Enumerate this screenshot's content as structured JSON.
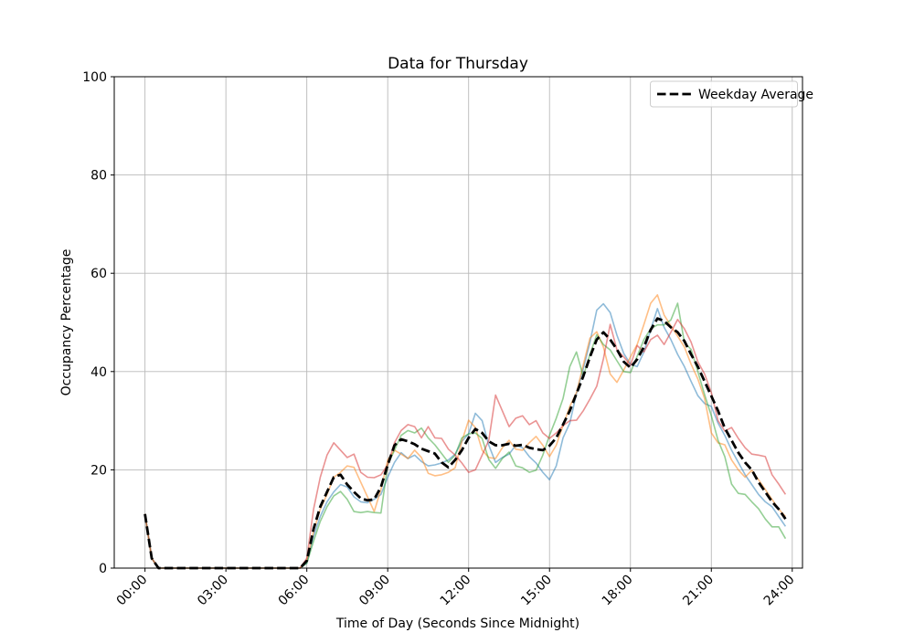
{
  "figure": {
    "background": "#ffffff",
    "grid_color": "#b9b9b9",
    "spine_color": "#000000"
  },
  "chart_data": {
    "type": "line",
    "title": "Data for Thursday",
    "xlabel": "Time of Day (Seconds Since Midnight)",
    "ylabel": "Occupancy Percentage",
    "legend_label": "Weekday Average",
    "legend_position": "upper right",
    "grid": true,
    "ylim": [
      0,
      100
    ],
    "yticks": [
      0,
      20,
      40,
      60,
      80,
      100
    ],
    "xlim_hours": [
      -1.14,
      24.38
    ],
    "xtick_hours": [
      0,
      3,
      6,
      9,
      12,
      15,
      18,
      21,
      24
    ],
    "xtick_labels": [
      "00:00",
      "03:00",
      "06:00",
      "09:00",
      "12:00",
      "15:00",
      "18:00",
      "21:00",
      "24:00"
    ],
    "x_hours": [
      0,
      0.25,
      0.5,
      0.75,
      1,
      1.25,
      1.5,
      1.75,
      2,
      2.25,
      2.5,
      2.75,
      3,
      3.25,
      3.5,
      3.75,
      4,
      4.25,
      4.5,
      4.75,
      5,
      5.25,
      5.5,
      5.75,
      6,
      6.25,
      6.5,
      6.75,
      7,
      7.25,
      7.5,
      7.75,
      8,
      8.25,
      8.5,
      8.75,
      9,
      9.25,
      9.5,
      9.75,
      10,
      10.25,
      10.5,
      10.75,
      11,
      11.25,
      11.5,
      11.75,
      12,
      12.25,
      12.5,
      12.75,
      13,
      13.25,
      13.5,
      13.75,
      14,
      14.25,
      14.5,
      14.75,
      15,
      15.25,
      15.5,
      15.75,
      16,
      16.25,
      16.5,
      16.75,
      17,
      17.25,
      17.5,
      17.75,
      18,
      18.25,
      18.5,
      18.75,
      19,
      19.25,
      19.5,
      19.75,
      20,
      20.25,
      20.5,
      20.75,
      21,
      21.25,
      21.5,
      21.75,
      22,
      22.25,
      22.5,
      22.75,
      23,
      23.25,
      23.5,
      23.75
    ],
    "series": [
      {
        "name": "day-blue",
        "color": "#1f77b4",
        "opacity": 0.5,
        "width": 1.6,
        "dashed": false,
        "values": [
          11,
          2,
          0,
          0,
          0,
          0,
          0,
          0,
          0,
          0,
          0,
          0,
          0,
          0,
          0,
          0,
          0,
          0,
          0,
          0,
          0,
          0,
          0,
          0,
          1,
          6.5,
          10.5,
          13.5,
          15.5,
          17,
          16.5,
          14.5,
          13.5,
          13.3,
          14,
          15,
          18.5,
          21.5,
          23.5,
          22.3,
          23,
          21.7,
          20.8,
          21,
          21.4,
          22,
          23.2,
          25.8,
          27.3,
          31.5,
          30,
          25,
          21.5,
          22.5,
          23.2,
          25,
          24.5,
          22.7,
          21.4,
          19.5,
          18,
          20.8,
          26.5,
          29.5,
          35.5,
          40.5,
          46,
          52.5,
          53.8,
          52,
          47.4,
          43.7,
          41.5,
          41,
          44,
          48.5,
          52.8,
          49,
          46.5,
          43.5,
          41,
          38,
          35.1,
          33.5,
          32.9,
          29.5,
          27,
          24,
          21.5,
          19,
          17,
          15,
          13.5,
          12.5,
          10.5,
          8.5
        ]
      },
      {
        "name": "day-orange",
        "color": "#ff7f0e",
        "opacity": 0.5,
        "width": 1.6,
        "dashed": false,
        "values": [
          11,
          2,
          0,
          0,
          0,
          0,
          0,
          0,
          0,
          0,
          0,
          0,
          0,
          0,
          0,
          0,
          0,
          0,
          0,
          0,
          0,
          0,
          0,
          0,
          1.5,
          7.5,
          12,
          15,
          18.5,
          19.5,
          20.8,
          20.5,
          17.5,
          14.5,
          11.5,
          16,
          22,
          24,
          23.2,
          22.3,
          24,
          22.5,
          19.3,
          18.8,
          19,
          19.5,
          20.4,
          25.8,
          30.1,
          28.6,
          24,
          22.5,
          22.3,
          24.5,
          26,
          24.2,
          24,
          25.5,
          26.8,
          25,
          22.7,
          25,
          29,
          32.9,
          35.7,
          41.3,
          46.8,
          48.1,
          45,
          39.5,
          37.8,
          40.3,
          43,
          45.5,
          49.6,
          53.9,
          55.6,
          51.5,
          49.3,
          47.2,
          45,
          41.5,
          38.5,
          34.5,
          27.5,
          25.5,
          25.1,
          22,
          20,
          18.5,
          19.9,
          18,
          16,
          14,
          12,
          10.5
        ]
      },
      {
        "name": "day-green",
        "color": "#2ca02c",
        "opacity": 0.5,
        "width": 1.6,
        "dashed": false,
        "values": [
          11,
          2,
          0,
          0,
          0,
          0,
          0,
          0,
          0,
          0,
          0,
          0,
          0,
          0,
          0,
          0,
          0,
          0,
          0,
          0,
          0,
          0,
          0,
          0,
          1,
          5.5,
          9.5,
          12.5,
          14.7,
          15.6,
          14,
          11.5,
          11.3,
          11.5,
          11.3,
          11.2,
          21,
          24,
          27,
          28,
          27.5,
          28.5,
          26.5,
          25.1,
          23.3,
          21.5,
          23,
          26.5,
          27.3,
          27.5,
          26.4,
          22.1,
          20.3,
          22.3,
          23.6,
          20.8,
          20.4,
          19.5,
          19.9,
          23,
          27,
          30.5,
          34.5,
          41,
          44,
          39,
          43.5,
          47.5,
          45.5,
          44.4,
          42.2,
          40,
          39.8,
          43.1,
          46.5,
          48.7,
          49.5,
          49.5,
          50.5,
          53.9,
          45.9,
          44.5,
          40,
          35.3,
          31,
          26,
          22.7,
          17.1,
          15.2,
          15,
          13.5,
          12.1,
          10,
          8.4,
          8.4,
          6
        ]
      },
      {
        "name": "day-red",
        "color": "#d62728",
        "opacity": 0.5,
        "width": 1.6,
        "dashed": false,
        "values": [
          11,
          2,
          0,
          0,
          0,
          0,
          0,
          0,
          0,
          0,
          0,
          0,
          0,
          0,
          0,
          0,
          0,
          0,
          0,
          0,
          0,
          0,
          0,
          0,
          2,
          12,
          18.5,
          23,
          25.5,
          24,
          22.5,
          23.2,
          19.5,
          18.5,
          18.4,
          19,
          21,
          25.5,
          28,
          29.2,
          28.8,
          26.5,
          28.8,
          26.5,
          26.4,
          24.2,
          23,
          21.4,
          19.5,
          20,
          23,
          26,
          35.2,
          32,
          28.8,
          30.5,
          31,
          29.2,
          30,
          27.5,
          26.4,
          27.5,
          29,
          30,
          30.1,
          32,
          34.4,
          37,
          42.6,
          49.6,
          44.4,
          43,
          41.3,
          45.3,
          44,
          46.5,
          47.4,
          45.5,
          48,
          50.6,
          48.7,
          46,
          42,
          39.5,
          35.7,
          30,
          27.9,
          28.6,
          26.4,
          24.5,
          23.2,
          23,
          22.7,
          19,
          17.1,
          15
        ]
      },
      {
        "name": "Weekday Average",
        "color": "#000000",
        "opacity": 1,
        "width": 2.8,
        "dashed": true,
        "values": [
          11,
          2,
          0,
          0,
          0,
          0,
          0,
          0,
          0,
          0,
          0,
          0,
          0,
          0,
          0,
          0,
          0,
          0,
          0,
          0,
          0,
          0,
          0,
          0,
          1.5,
          8,
          12.5,
          15.5,
          18.5,
          19,
          17,
          15.5,
          14.2,
          13.8,
          14,
          16.5,
          21,
          25,
          26.2,
          25.8,
          25.2,
          24.3,
          23.8,
          23.3,
          21.5,
          20.5,
          22,
          24,
          26.5,
          28.3,
          27.5,
          25.8,
          25,
          25,
          25.3,
          24.9,
          25.1,
          24.5,
          24.2,
          24,
          24.9,
          26.5,
          29.2,
          32,
          35.5,
          39,
          43,
          46.5,
          48,
          46.5,
          44.5,
          42,
          40.8,
          42.5,
          45,
          48.5,
          50.8,
          50.3,
          49,
          48,
          46.2,
          43.5,
          41,
          38,
          35,
          32,
          28.5,
          26,
          23.5,
          21.5,
          20,
          17.5,
          15.5,
          13.5,
          12,
          10
        ]
      }
    ]
  }
}
